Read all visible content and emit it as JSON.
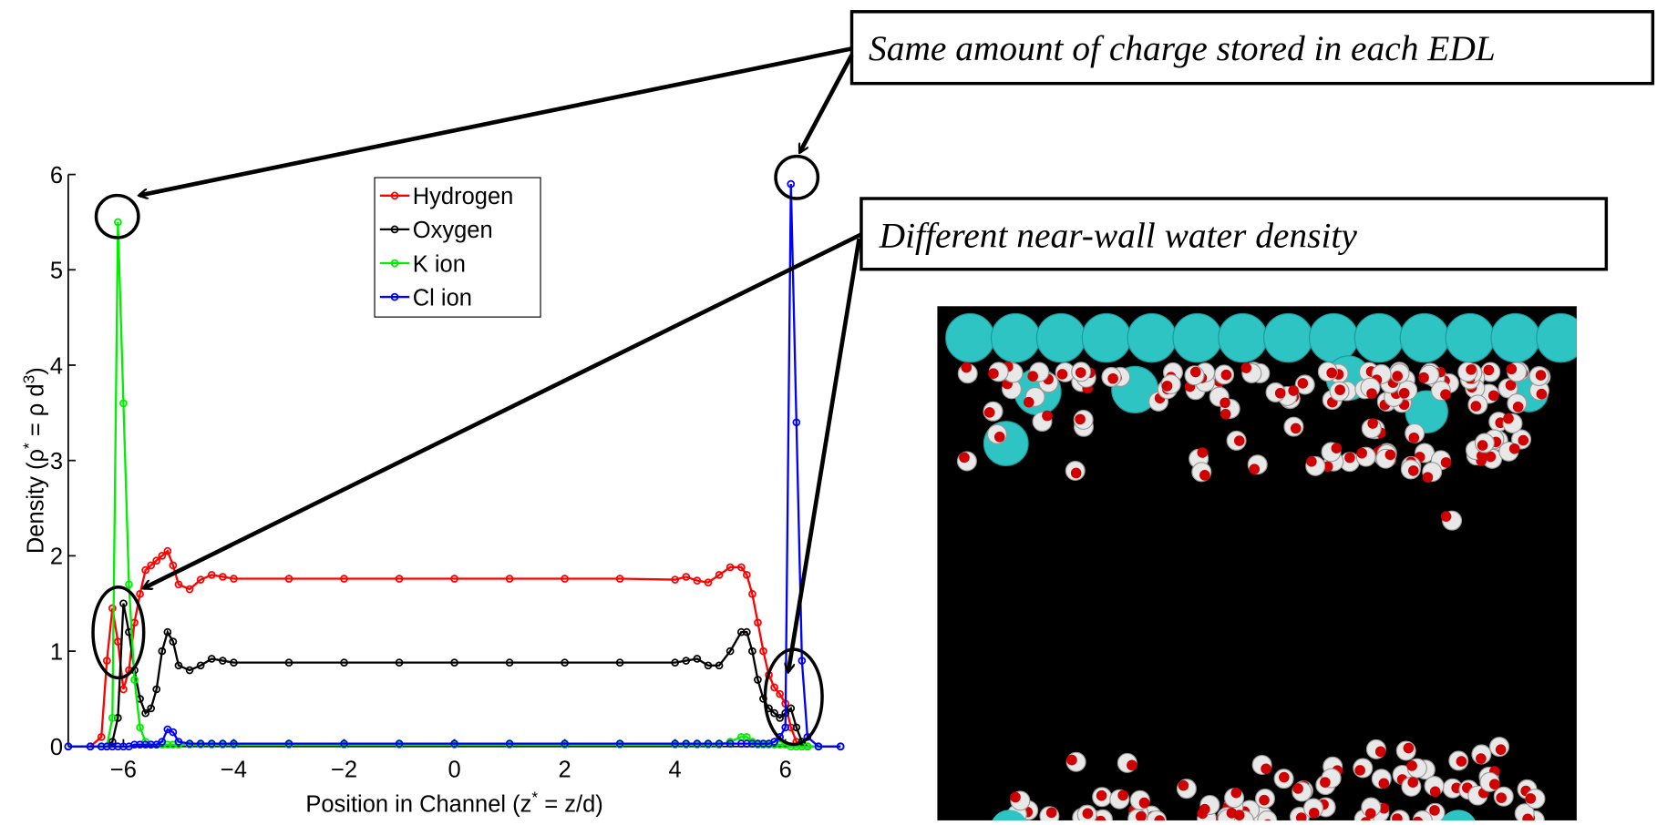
{
  "chart_data": {
    "type": "line",
    "x_label": [
      "Position in Channel (z",
      "*",
      " = z/d)"
    ],
    "y_label": [
      "Density (ρ",
      "*",
      " = ρ d",
      "3",
      ")"
    ],
    "x": [
      -7,
      -6.6,
      -6.4,
      -6.3,
      -6.2,
      -6.1,
      -6.0,
      -5.9,
      -5.8,
      -5.7,
      -5.6,
      -5.5,
      -5.4,
      -5.3,
      -5.2,
      -5.1,
      -5.0,
      -4.8,
      -4.6,
      -4.4,
      -4.2,
      -4.0,
      -3,
      -2,
      -1,
      0,
      1,
      2,
      3,
      4.0,
      4.2,
      4.4,
      4.6,
      4.8,
      5.0,
      5.2,
      5.3,
      5.4,
      5.5,
      5.6,
      5.7,
      5.8,
      5.9,
      6.0,
      6.1,
      6.2,
      6.3,
      6.4,
      6.6,
      7
    ],
    "series": [
      {
        "name": "Hydrogen",
        "color": "#ff0000",
        "values": [
          0,
          0,
          0.1,
          0.9,
          1.45,
          1.1,
          0.6,
          0.8,
          1.3,
          1.6,
          1.85,
          1.9,
          1.95,
          2.0,
          2.05,
          1.9,
          1.7,
          1.65,
          1.75,
          1.8,
          1.78,
          1.76,
          1.76,
          1.76,
          1.76,
          1.76,
          1.76,
          1.76,
          1.76,
          1.75,
          1.78,
          1.74,
          1.72,
          1.8,
          1.88,
          1.88,
          1.8,
          1.6,
          1.3,
          1.0,
          0.75,
          0.62,
          0.55,
          0.45,
          0.2,
          0.05,
          0,
          0,
          0,
          0
        ]
      },
      {
        "name": "Oxygen",
        "color": "#000000",
        "values": [
          0,
          0,
          0,
          0,
          0.05,
          0.3,
          1.5,
          1.2,
          0.8,
          0.5,
          0.35,
          0.4,
          0.6,
          1.0,
          1.2,
          1.1,
          0.85,
          0.8,
          0.85,
          0.92,
          0.9,
          0.88,
          0.88,
          0.88,
          0.88,
          0.88,
          0.88,
          0.88,
          0.88,
          0.88,
          0.9,
          0.92,
          0.85,
          0.85,
          1.0,
          1.2,
          1.2,
          1.0,
          0.7,
          0.5,
          0.4,
          0.35,
          0.3,
          0.35,
          0.4,
          0.2,
          0.05,
          0,
          0,
          0
        ]
      },
      {
        "name": "K ion",
        "color": "#00ee00",
        "values": [
          0,
          0,
          0,
          0,
          0.3,
          5.5,
          3.6,
          1.7,
          0.7,
          0.2,
          0.05,
          0.02,
          0.02,
          0.02,
          0.02,
          0.02,
          0.02,
          0.02,
          0.02,
          0.02,
          0.02,
          0.02,
          0.02,
          0.02,
          0.02,
          0.02,
          0.02,
          0.02,
          0.02,
          0.02,
          0.02,
          0.02,
          0.02,
          0.02,
          0.05,
          0.1,
          0.1,
          0.05,
          0.02,
          0.02,
          0.02,
          0.02,
          0.02,
          0.02,
          0,
          0,
          0,
          0,
          0,
          0
        ]
      },
      {
        "name": "Cl ion",
        "color": "#0000ff",
        "values": [
          0,
          0,
          0,
          0,
          0,
          0,
          0,
          0,
          0.02,
          0.02,
          0.02,
          0.02,
          0.02,
          0.05,
          0.18,
          0.15,
          0.05,
          0.03,
          0.03,
          0.03,
          0.03,
          0.03,
          0.03,
          0.03,
          0.03,
          0.03,
          0.03,
          0.03,
          0.03,
          0.03,
          0.03,
          0.03,
          0.03,
          0.03,
          0.03,
          0.03,
          0.03,
          0.03,
          0.03,
          0.03,
          0.03,
          0.05,
          0.1,
          0.2,
          5.9,
          3.4,
          0.9,
          0.1,
          0,
          0
        ]
      }
    ],
    "xlim": [
      -7,
      7
    ],
    "xticks": [
      {
        "value": -6,
        "label": "−6"
      },
      {
        "value": -4,
        "label": "−4"
      },
      {
        "value": -2,
        "label": "−2"
      },
      0,
      2,
      4,
      6
    ],
    "ylim": [
      0,
      6
    ],
    "yticks": [
      0,
      1,
      2,
      3,
      4,
      5,
      6
    ],
    "legend": "top-center",
    "annotations": [
      "Same amount of charge stored in each EDL",
      "Different near-wall water density"
    ]
  }
}
